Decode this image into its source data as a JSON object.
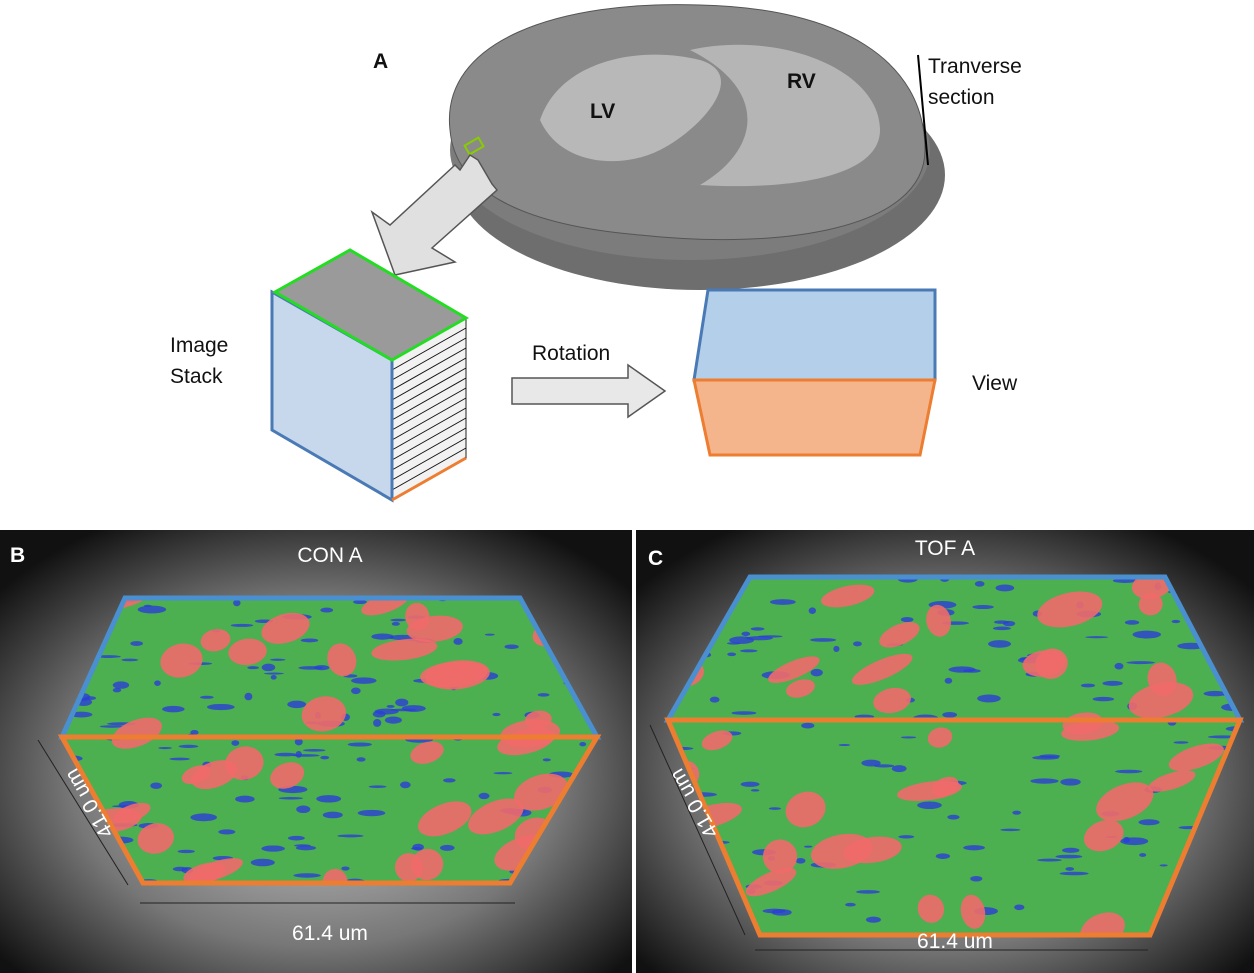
{
  "panel_a": {
    "label": "A",
    "lv": "LV",
    "rv": "RV",
    "section_label": [
      "Tranverse",
      "section"
    ],
    "stack_label": [
      "Image",
      "Stack"
    ],
    "rotation": "Rotation",
    "view": "View"
  },
  "panels": [
    {
      "label": "B",
      "title": "CON A",
      "depth": "41.0 um",
      "width": "61.4 um"
    },
    {
      "label": "C",
      "title": "TOF A",
      "depth": "41.0 um",
      "width": "61.4 um"
    }
  ]
}
